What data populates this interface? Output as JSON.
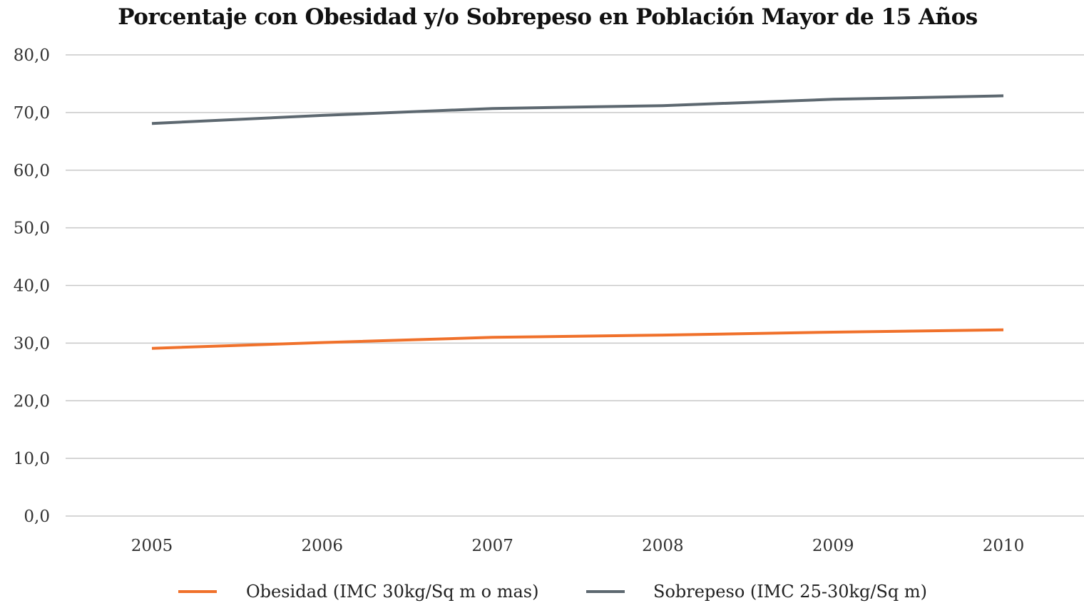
{
  "chart_data": {
    "type": "line",
    "title": "Porcentaje con Obesidad y/o Sobrepeso en Población Mayor de 15 Años",
    "x": [
      "2005",
      "2006",
      "2007",
      "2008",
      "2009",
      "2010"
    ],
    "y_ticks": [
      "0,0",
      "10,0",
      "20,0",
      "30,0",
      "40,0",
      "50,0",
      "60,0",
      "70,0",
      "80,0"
    ],
    "ylim": [
      0,
      80
    ],
    "grid": true,
    "legend_position": "bottom",
    "series": [
      {
        "name": "Obesidad (IMC 30kg/Sq m o mas)",
        "color": "#f0712b",
        "values": [
          29.1,
          30.1,
          31.0,
          31.4,
          31.9,
          32.3
        ]
      },
      {
        "name": "Sobrepeso (IMC 25-30kg/Sq m)",
        "color": "#5d6870",
        "values": [
          68.1,
          69.5,
          70.7,
          71.2,
          72.3,
          72.9
        ]
      }
    ]
  }
}
